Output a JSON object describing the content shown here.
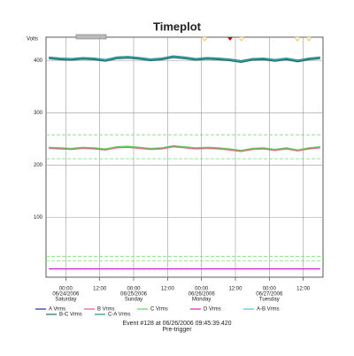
{
  "chart_data": {
    "type": "line",
    "title": "Timeplot",
    "y_label": "Volts",
    "x": [
      -6,
      -2,
      2,
      6,
      10,
      14,
      18,
      22,
      26,
      30,
      34,
      38,
      42,
      46,
      50,
      54,
      58,
      62,
      66,
      70,
      74,
      78,
      82,
      86,
      90
    ],
    "xlim": [
      -7,
      91
    ],
    "xticks": [
      {
        "value": 0,
        "label": "00:00"
      },
      {
        "value": 12,
        "label": "12:00"
      },
      {
        "value": 24,
        "label": "00:00"
      },
      {
        "value": 36,
        "label": "12:00"
      },
      {
        "value": 48,
        "label": "00:00"
      },
      {
        "value": 60,
        "label": "12:00"
      },
      {
        "value": 72,
        "label": "00:00"
      },
      {
        "value": 84,
        "label": "12:00"
      }
    ],
    "day_labels": [
      {
        "date": "06/24/2006",
        "day": "Saturday"
      },
      {
        "date": "06/25/2006",
        "day": "Sunday"
      },
      {
        "date": "06/26/2006",
        "day": "Monday"
      },
      {
        "date": "06/27/2006",
        "day": "Tuesday"
      }
    ],
    "ylim": [
      -15,
      445
    ],
    "yticks": [
      100,
      200,
      300,
      400
    ],
    "grid": true,
    "limit_lines": {
      "color": "#7ee07e",
      "values": [
        258,
        212,
        25,
        16
      ]
    },
    "series": [
      {
        "name": "A Vrms",
        "color": "#1f2f9a",
        "values": [
          233,
          232,
          231,
          233,
          232,
          230,
          234,
          235,
          233,
          231,
          232,
          236,
          234,
          232,
          233,
          232,
          230,
          227,
          231,
          232,
          229,
          232,
          228,
          232,
          234
        ]
      },
      {
        "name": "B Vrms",
        "color": "#e0607a",
        "values": [
          232,
          231,
          230,
          232,
          231,
          229,
          233,
          234,
          232,
          230,
          231,
          235,
          233,
          231,
          232,
          231,
          229,
          226,
          230,
          231,
          228,
          231,
          227,
          231,
          233
        ]
      },
      {
        "name": "C Vrms",
        "color": "#5fd65f",
        "values": [
          234,
          233,
          232,
          234,
          233,
          231,
          235,
          236,
          234,
          232,
          233,
          237,
          235,
          233,
          234,
          233,
          231,
          228,
          232,
          233,
          230,
          233,
          229,
          233,
          235
        ]
      },
      {
        "name": "D Vrms",
        "color": "#d020d0",
        "values": [
          1,
          1,
          1,
          1,
          1,
          1,
          1,
          1,
          1,
          1,
          1,
          1,
          1,
          1,
          1,
          1,
          1,
          1,
          1,
          1,
          1,
          1,
          1,
          1,
          1
        ]
      },
      {
        "name": "A-B Vrms",
        "color": "#40c8d0",
        "values": [
          406,
          404,
          403,
          405,
          404,
          401,
          406,
          407,
          405,
          402,
          404,
          408,
          406,
          403,
          405,
          404,
          402,
          399,
          403,
          404,
          401,
          404,
          400,
          404,
          406
        ]
      },
      {
        "name": "B-C Vrms",
        "color": "#1d6b6b",
        "values": [
          404,
          402,
          401,
          403,
          402,
          399,
          404,
          405,
          403,
          400,
          402,
          406,
          404,
          401,
          403,
          402,
          400,
          397,
          401,
          402,
          399,
          402,
          398,
          402,
          404
        ]
      },
      {
        "name": "C-A Vrms",
        "color": "#2a8c8c",
        "values": [
          407,
          405,
          404,
          406,
          405,
          402,
          407,
          408,
          406,
          403,
          405,
          409,
          407,
          404,
          406,
          405,
          403,
          400,
          404,
          405,
          402,
          405,
          401,
          405,
          407
        ]
      }
    ],
    "footer": "Event #128 at 06/26/2006 09:45:39.420",
    "footer_sub": "Pre-trigger"
  }
}
